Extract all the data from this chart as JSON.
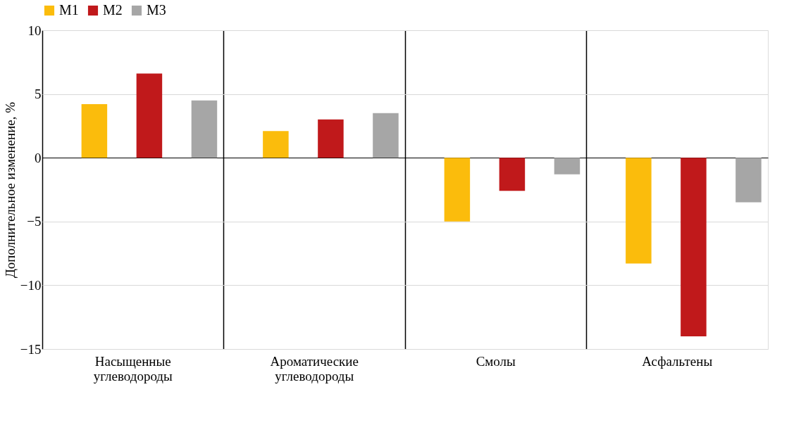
{
  "chart_data": {
    "type": "bar",
    "ylabel": "Дополнительное изменение, %",
    "categories": [
      "Насыщенные углеводороды",
      "Ароматические углеводороды",
      "Смолы",
      "Асфальтены"
    ],
    "series": [
      {
        "name": "М1",
        "color": "#fbbc0c",
        "values": [
          4.2,
          2.1,
          -5.0,
          -8.3
        ]
      },
      {
        "name": "М2",
        "color": "#c0191b",
        "values": [
          6.6,
          3.0,
          -2.6,
          -14.0
        ]
      },
      {
        "name": "М3",
        "color": "#a6a6a6",
        "values": [
          4.5,
          3.5,
          -1.3,
          -3.5
        ]
      }
    ],
    "ylim": [
      -15,
      10
    ],
    "yticks": [
      {
        "value": -15,
        "label": "−15"
      },
      {
        "value": -10,
        "label": "−10"
      },
      {
        "value": -5,
        "label": "−5"
      },
      0,
      5,
      10
    ],
    "grid": true,
    "legend": "top"
  }
}
